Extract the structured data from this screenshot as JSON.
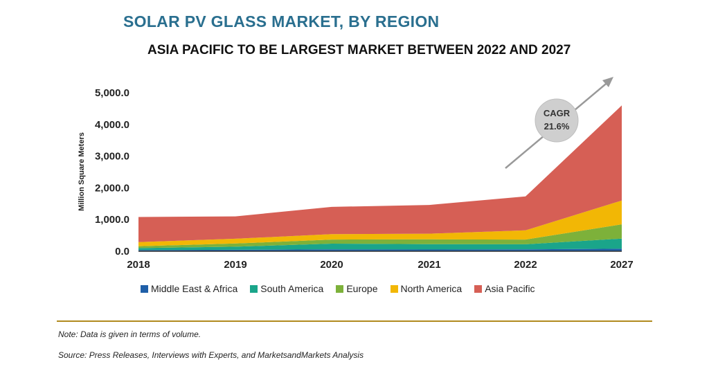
{
  "title": "SOLAR PV GLASS MARKET, BY REGION",
  "subtitle": "ASIA PACIFIC TO BE LARGEST MARKET BETWEEN 2022 AND 2027",
  "note": "Note: Data is given in terms of volume.",
  "source": "Source: Press Releases, Interviews with Experts, and MarketsandMarkets Analysis",
  "cagr": {
    "label": "CAGR",
    "value": "21.6%"
  },
  "chart_data": {
    "type": "area",
    "stacked": true,
    "x": [
      "2018",
      "2019",
      "2020",
      "2021",
      "2022",
      "2027"
    ],
    "ylabel": "Million Square Meters",
    "ylim": [
      0,
      5000
    ],
    "yticks": [
      "0.0",
      "1,000.0",
      "2,000.0",
      "3,000.0",
      "4,000.0",
      "5,000.0"
    ],
    "grid": false,
    "legend_position": "bottom",
    "series": [
      {
        "name": "Middle East & Africa",
        "color": "#1f5fa8",
        "values": [
          40,
          45,
          60,
          55,
          60,
          80
        ]
      },
      {
        "name": "South America",
        "color": "#1aa58a",
        "values": [
          60,
          100,
          180,
          170,
          160,
          320
        ]
      },
      {
        "name": "Europe",
        "color": "#7db13a",
        "values": [
          60,
          100,
          130,
          150,
          150,
          450
        ]
      },
      {
        "name": "North America",
        "color": "#f2b705",
        "values": [
          130,
          150,
          170,
          180,
          290,
          750
        ]
      },
      {
        "name": "Asia Pacific",
        "color": "#d65f55",
        "values": [
          790,
          705,
          860,
          905,
          1070,
          3000
        ]
      }
    ]
  }
}
